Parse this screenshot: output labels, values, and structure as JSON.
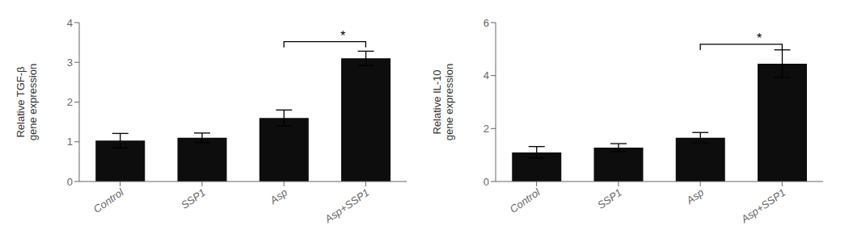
{
  "chart_data": [
    {
      "type": "bar",
      "ylabel": "Relative TGF-β\ngene expression",
      "categories": [
        "Control",
        "SSP1",
        "Asp",
        "Asp+SSP1"
      ],
      "values": [
        1.03,
        1.1,
        1.6,
        3.1
      ],
      "errors": [
        0.18,
        0.12,
        0.2,
        0.18
      ],
      "color": "#0d0d0d",
      "ylim": [
        0,
        4
      ],
      "yticks": [
        0,
        1,
        2,
        3,
        4
      ],
      "grid": false,
      "annotations": [
        {
          "text": "*",
          "x1": "Asp",
          "x2": "Asp+SSP1",
          "y": 3.52
        }
      ]
    },
    {
      "type": "bar",
      "ylabel": "Relative IL-10\ngene expression",
      "categories": [
        "Control",
        "SSP1",
        "Asp",
        "Asp+SSP1"
      ],
      "values": [
        1.1,
        1.28,
        1.65,
        4.45
      ],
      "errors": [
        0.22,
        0.15,
        0.2,
        0.52
      ],
      "color": "#0d0d0d",
      "ylim": [
        0,
        6
      ],
      "yticks": [
        0,
        2,
        4,
        6
      ],
      "grid": false,
      "annotations": [
        {
          "text": "*",
          "x1": "Asp",
          "x2": "Asp+SSP1",
          "y": 5.18
        }
      ]
    }
  ]
}
